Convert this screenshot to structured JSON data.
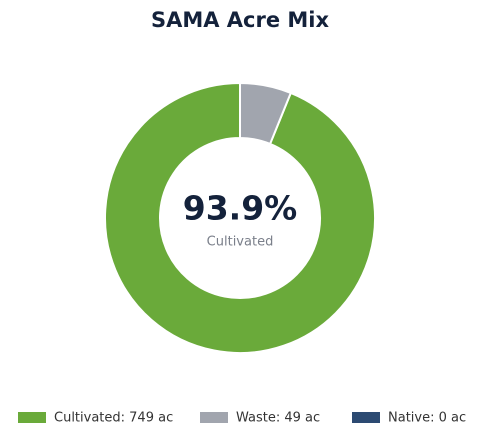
{
  "chart_data": {
    "type": "donut",
    "title": "SAMA Acre Mix",
    "categories": [
      "Cultivated",
      "Waste",
      "Native"
    ],
    "values": [
      749,
      49,
      0
    ],
    "colors": [
      "#6aaa3a",
      "#a1a5ae",
      "#2c4a72"
    ],
    "legend_labels": [
      "Cultivated: 749 ac",
      "Waste: 49 ac",
      "Native: 0 ac"
    ],
    "center_label": "93.9%",
    "center_caption": "Cultivated"
  }
}
